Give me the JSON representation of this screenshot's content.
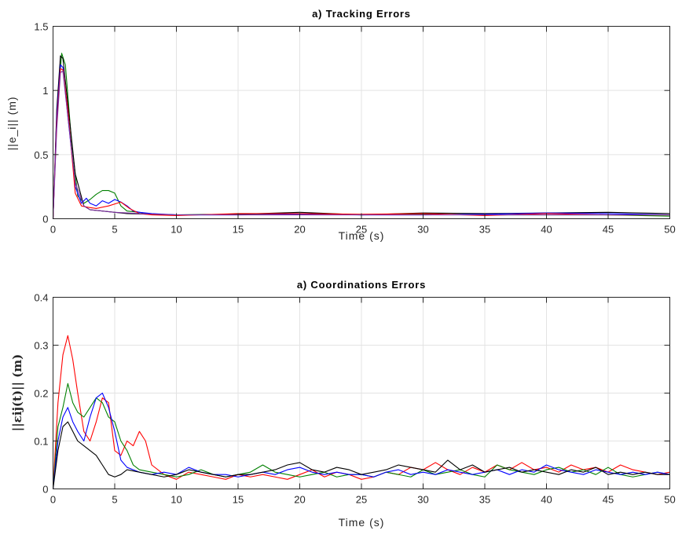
{
  "chart_data": [
    {
      "type": "line",
      "title": "a) Tracking Errors",
      "xlabel": "Time (s)",
      "ylabel": "||e_i|| (m)",
      "xlim": [
        0,
        50
      ],
      "ylim": [
        0,
        1.5
      ],
      "xticks": [
        "0",
        "5",
        "10",
        "15",
        "20",
        "25",
        "30",
        "35",
        "40",
        "45",
        "50"
      ],
      "yticks": [
        "0",
        "0.5",
        "1",
        "1.5"
      ],
      "grid": true,
      "series": [
        {
          "color": "#008000",
          "x": [
            0,
            0.3,
            0.7,
            1.0,
            1.5,
            2,
            2.5,
            3,
            3.5,
            4,
            4.5,
            5,
            5.5,
            6,
            7,
            8,
            10,
            15,
            20,
            25,
            30,
            35,
            40,
            45,
            50
          ],
          "y": [
            0,
            0.8,
            1.29,
            1.2,
            0.6,
            0.18,
            0.12,
            0.15,
            0.19,
            0.22,
            0.22,
            0.2,
            0.1,
            0.06,
            0.05,
            0.035,
            0.03,
            0.035,
            0.04,
            0.03,
            0.035,
            0.03,
            0.03,
            0.03,
            0.02
          ]
        },
        {
          "color": "#000000",
          "x": [
            0,
            0.3,
            0.6,
            0.8,
            1.2,
            1.8,
            2.5,
            3,
            4,
            5,
            6,
            8,
            10,
            15,
            20,
            25,
            30,
            35,
            40,
            45,
            50
          ],
          "y": [
            0,
            0.85,
            1.27,
            1.25,
            0.9,
            0.35,
            0.1,
            0.07,
            0.06,
            0.05,
            0.04,
            0.035,
            0.03,
            0.035,
            0.05,
            0.03,
            0.045,
            0.04,
            0.045,
            0.05,
            0.04
          ]
        },
        {
          "color": "#0000ff",
          "x": [
            0,
            0.3,
            0.6,
            0.8,
            1.2,
            1.8,
            2.3,
            2.7,
            3,
            3.5,
            4,
            4.5,
            5,
            5.5,
            6,
            6.5,
            7,
            8,
            10,
            15,
            20,
            25,
            30,
            35,
            40,
            45,
            50
          ],
          "y": [
            0,
            0.8,
            1.2,
            1.18,
            0.8,
            0.25,
            0.12,
            0.16,
            0.12,
            0.1,
            0.14,
            0.12,
            0.15,
            0.13,
            0.1,
            0.06,
            0.05,
            0.04,
            0.03,
            0.03,
            0.035,
            0.03,
            0.03,
            0.035,
            0.045,
            0.04,
            0.03
          ]
        },
        {
          "color": "#ff0000",
          "x": [
            0,
            0.3,
            0.6,
            0.8,
            1.2,
            1.8,
            2.3,
            2.8,
            3.5,
            4.5,
            5.5,
            6.2,
            7,
            8,
            10,
            15,
            20,
            25,
            30,
            35,
            40,
            45,
            50
          ],
          "y": [
            0,
            0.75,
            1.17,
            1.16,
            0.85,
            0.2,
            0.1,
            0.09,
            0.08,
            0.1,
            0.13,
            0.08,
            0.04,
            0.03,
            0.025,
            0.04,
            0.04,
            0.035,
            0.04,
            0.025,
            0.04,
            0.03,
            0.03
          ]
        },
        {
          "color": "#7a2da0",
          "x": [
            0,
            0.3,
            0.6,
            0.8,
            1.2,
            1.8,
            2.5,
            3,
            4,
            5,
            7,
            10,
            15,
            20,
            25,
            30,
            35,
            40,
            45,
            50
          ],
          "y": [
            0,
            0.7,
            1.14,
            1.15,
            0.8,
            0.28,
            0.1,
            0.07,
            0.06,
            0.05,
            0.04,
            0.03,
            0.03,
            0.03,
            0.03,
            0.03,
            0.03,
            0.03,
            0.03,
            0.03
          ]
        }
      ]
    },
    {
      "type": "line",
      "title": "a) Coordinations Errors",
      "xlabel": "Time (s)",
      "ylabel": "||εij(t)|| (m)",
      "xlim": [
        0,
        50
      ],
      "ylim": [
        0,
        0.4
      ],
      "xticks": [
        "0",
        "5",
        "10",
        "15",
        "20",
        "25",
        "30",
        "35",
        "40",
        "45",
        "50"
      ],
      "yticks": [
        "0",
        "0.1",
        "0.2",
        "0.3",
        "0.4"
      ],
      "grid": true,
      "series": [
        {
          "color": "#ff0000",
          "x": [
            0,
            0.4,
            0.8,
            1.2,
            1.6,
            2.0,
            2.5,
            3.0,
            3.5,
            4.0,
            4.5,
            5.0,
            5.5,
            6.0,
            6.5,
            7.0,
            7.5,
            8.0,
            9,
            10,
            11,
            12,
            13,
            14,
            15,
            16,
            17,
            18,
            19,
            20,
            21,
            22,
            23,
            24,
            25,
            26,
            27,
            28,
            29,
            30,
            31,
            32,
            33,
            34,
            35,
            36,
            37,
            38,
            39,
            40,
            41,
            42,
            43,
            44,
            45,
            46,
            47,
            48,
            49,
            50
          ],
          "y": [
            0,
            0.18,
            0.28,
            0.32,
            0.27,
            0.2,
            0.12,
            0.1,
            0.14,
            0.19,
            0.18,
            0.08,
            0.07,
            0.1,
            0.09,
            0.12,
            0.1,
            0.05,
            0.03,
            0.02,
            0.035,
            0.03,
            0.025,
            0.02,
            0.03,
            0.025,
            0.03,
            0.025,
            0.02,
            0.03,
            0.04,
            0.025,
            0.035,
            0.03,
            0.02,
            0.025,
            0.035,
            0.03,
            0.045,
            0.04,
            0.055,
            0.04,
            0.03,
            0.045,
            0.035,
            0.05,
            0.04,
            0.055,
            0.04,
            0.045,
            0.035,
            0.05,
            0.04,
            0.045,
            0.035,
            0.05,
            0.04,
            0.035,
            0.03,
            0.035
          ]
        },
        {
          "color": "#008000",
          "x": [
            0,
            0.4,
            0.8,
            1.2,
            1.6,
            2.0,
            2.5,
            3.0,
            3.5,
            4.0,
            4.5,
            5.0,
            5.5,
            6.0,
            6.5,
            7.0,
            8,
            9,
            10,
            11,
            12,
            13,
            14,
            15,
            16,
            17,
            18,
            19,
            20,
            21,
            22,
            23,
            24,
            25,
            26,
            27,
            28,
            29,
            30,
            31,
            32,
            33,
            34,
            35,
            36,
            37,
            38,
            39,
            40,
            41,
            42,
            43,
            44,
            45,
            46,
            47,
            48,
            49,
            50
          ],
          "y": [
            0,
            0.13,
            0.17,
            0.22,
            0.18,
            0.16,
            0.15,
            0.17,
            0.19,
            0.18,
            0.15,
            0.14,
            0.1,
            0.08,
            0.05,
            0.04,
            0.035,
            0.03,
            0.025,
            0.03,
            0.04,
            0.03,
            0.025,
            0.03,
            0.035,
            0.05,
            0.035,
            0.03,
            0.025,
            0.03,
            0.035,
            0.025,
            0.03,
            0.03,
            0.025,
            0.035,
            0.03,
            0.025,
            0.04,
            0.03,
            0.035,
            0.04,
            0.03,
            0.025,
            0.05,
            0.04,
            0.035,
            0.03,
            0.04,
            0.045,
            0.035,
            0.04,
            0.03,
            0.045,
            0.03,
            0.025,
            0.03,
            0.035,
            0.03
          ]
        },
        {
          "color": "#0000ff",
          "x": [
            0,
            0.4,
            0.8,
            1.2,
            1.6,
            2.0,
            2.5,
            3.0,
            3.5,
            4.0,
            4.5,
            5.0,
            5.5,
            6.0,
            6.5,
            7.0,
            8,
            9,
            10,
            11,
            12,
            13,
            14,
            15,
            16,
            17,
            18,
            19,
            20,
            21,
            22,
            23,
            24,
            25,
            26,
            27,
            28,
            29,
            30,
            31,
            32,
            33,
            34,
            35,
            36,
            37,
            38,
            39,
            40,
            41,
            42,
            43,
            44,
            45,
            46,
            47,
            48,
            49,
            50
          ],
          "y": [
            0,
            0.1,
            0.15,
            0.17,
            0.14,
            0.12,
            0.1,
            0.15,
            0.19,
            0.2,
            0.17,
            0.12,
            0.06,
            0.045,
            0.04,
            0.035,
            0.03,
            0.035,
            0.03,
            0.045,
            0.035,
            0.03,
            0.03,
            0.025,
            0.03,
            0.035,
            0.03,
            0.04,
            0.045,
            0.035,
            0.03,
            0.035,
            0.03,
            0.03,
            0.025,
            0.035,
            0.04,
            0.03,
            0.035,
            0.03,
            0.04,
            0.035,
            0.03,
            0.035,
            0.04,
            0.03,
            0.04,
            0.035,
            0.05,
            0.04,
            0.035,
            0.03,
            0.04,
            0.035,
            0.03,
            0.035,
            0.03,
            0.035,
            0.03
          ]
        },
        {
          "color": "#000000",
          "x": [
            0,
            0.4,
            0.8,
            1.2,
            1.6,
            2.0,
            2.5,
            3.0,
            3.5,
            4.0,
            4.5,
            5.0,
            5.5,
            6.0,
            7,
            8,
            9,
            10,
            11,
            12,
            13,
            14,
            15,
            16,
            17,
            18,
            19,
            20,
            21,
            22,
            23,
            24,
            25,
            26,
            27,
            28,
            29,
            30,
            31,
            32,
            33,
            34,
            35,
            36,
            37,
            38,
            39,
            40,
            41,
            42,
            43,
            44,
            45,
            46,
            47,
            48,
            49,
            50
          ],
          "y": [
            0,
            0.08,
            0.13,
            0.14,
            0.12,
            0.1,
            0.09,
            0.08,
            0.07,
            0.05,
            0.03,
            0.025,
            0.03,
            0.04,
            0.035,
            0.03,
            0.025,
            0.03,
            0.04,
            0.035,
            0.03,
            0.025,
            0.03,
            0.03,
            0.035,
            0.04,
            0.05,
            0.055,
            0.04,
            0.035,
            0.045,
            0.04,
            0.03,
            0.035,
            0.04,
            0.05,
            0.045,
            0.04,
            0.035,
            0.06,
            0.04,
            0.05,
            0.035,
            0.04,
            0.045,
            0.035,
            0.04,
            0.035,
            0.03,
            0.04,
            0.035,
            0.045,
            0.03,
            0.035,
            0.03,
            0.035,
            0.03,
            0.03
          ]
        }
      ]
    }
  ]
}
